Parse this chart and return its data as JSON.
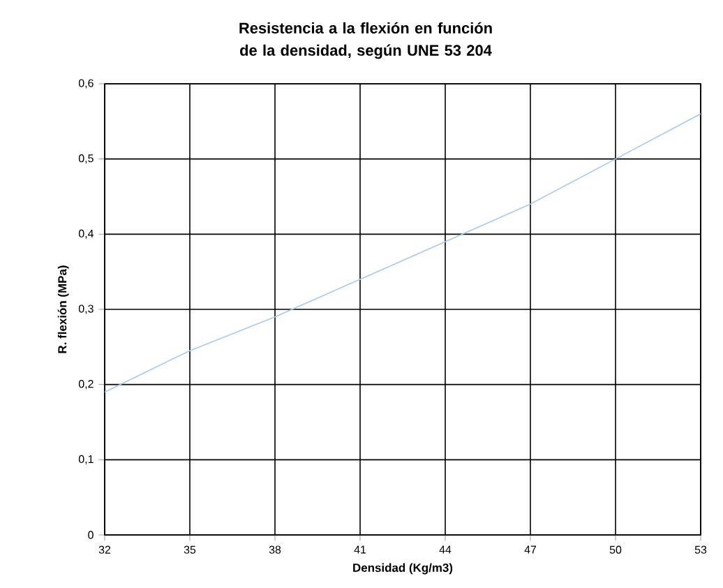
{
  "chart_data": {
    "type": "line",
    "title": "Resistencia a la flexión en función de la densidad, según UNE 53 204",
    "xlabel": "Densidad (Kg/m3)",
    "ylabel": "R. flexión (MPa)",
    "x": [
      32,
      35,
      38,
      41,
      44,
      47,
      50,
      53
    ],
    "series": [
      {
        "color": "#a9c8ea",
        "values": [
          0.19,
          0.245,
          0.29,
          0.34,
          0.39,
          0.44,
          0.5,
          0.56
        ]
      }
    ],
    "xlim": [
      32,
      53
    ],
    "xticks": [
      32,
      35,
      38,
      41,
      44,
      47,
      50,
      53
    ],
    "ylim": [
      0,
      0.6
    ],
    "yticks": [
      0,
      {
        "value": 0.1,
        "label": "0,1"
      },
      {
        "value": 0.2,
        "label": "0,2"
      },
      {
        "value": 0.3,
        "label": "0,3"
      },
      {
        "value": 0.4,
        "label": "0,4"
      },
      {
        "value": 0.5,
        "label": "0,5"
      },
      {
        "value": 0.6,
        "label": "0,6"
      }
    ],
    "grid": true,
    "marker": "none",
    "line_style": "solid"
  }
}
